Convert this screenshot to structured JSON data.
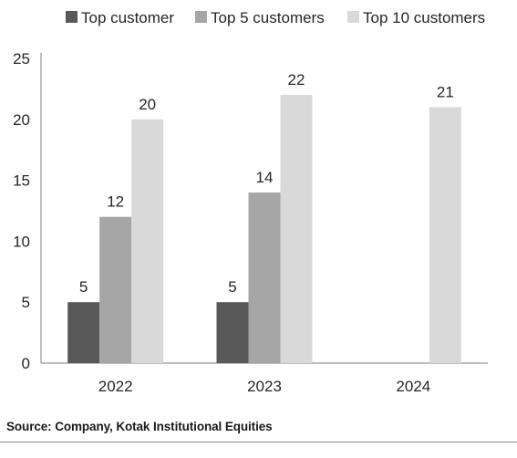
{
  "source": "Source: Company, Kotak Institutional Equities",
  "chart_data": {
    "type": "bar",
    "title": "",
    "xlabel": "",
    "ylabel": "",
    "categories": [
      "2022",
      "2023",
      "2024"
    ],
    "ylim": [
      0,
      25
    ],
    "yticks": [
      0,
      5,
      10,
      15,
      20,
      25
    ],
    "grid": false,
    "legend_position": "top",
    "series": [
      {
        "name": "Top customer",
        "color": "#595959",
        "values": [
          5,
          5,
          null
        ],
        "labels": [
          "5",
          "5",
          ""
        ]
      },
      {
        "name": "Top 5 customers",
        "color": "#a6a6a6",
        "values": [
          12,
          14,
          null
        ],
        "labels": [
          "12",
          "14",
          ""
        ]
      },
      {
        "name": "Top 10 customers",
        "color": "#d9d9d9",
        "values": [
          20,
          22,
          21
        ],
        "labels": [
          "20",
          "22",
          "21"
        ]
      }
    ]
  }
}
